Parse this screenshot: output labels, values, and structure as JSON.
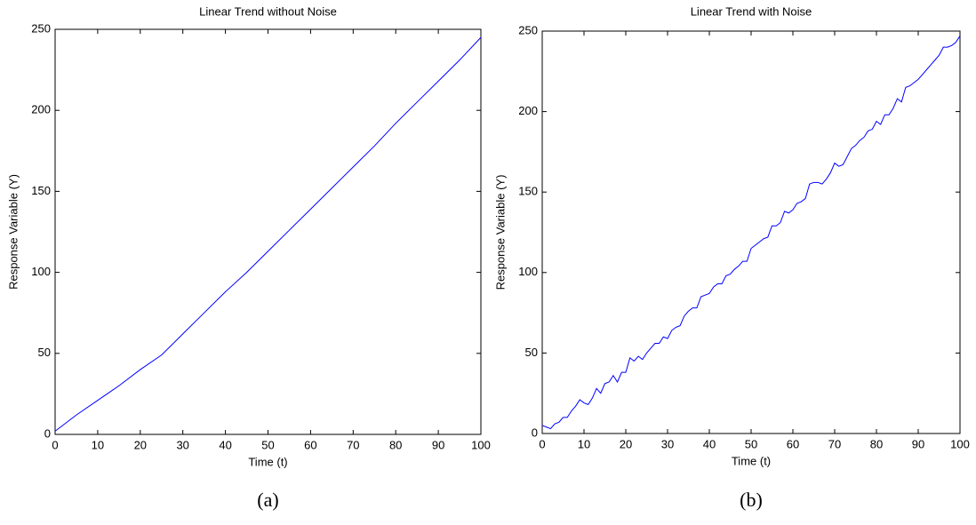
{
  "chart_data": [
    {
      "type": "line",
      "title": "Linear Trend without Noise",
      "xlabel": "Time (t)",
      "ylabel": "Response Variable (Y)",
      "caption": "(a)",
      "x": [
        0,
        5,
        10,
        15,
        20,
        25,
        30,
        35,
        40,
        45,
        50,
        55,
        60,
        65,
        70,
        75,
        80,
        85,
        90,
        95,
        100
      ],
      "series": [
        {
          "name": "Y",
          "color": "#0000ff",
          "values": [
            2,
            12,
            21,
            30,
            40,
            49,
            62,
            75,
            88,
            100,
            113,
            126,
            139,
            152,
            165,
            178,
            192,
            205,
            218,
            231,
            245
          ]
        }
      ],
      "xlim": [
        0,
        100
      ],
      "ylim": [
        0,
        250
      ],
      "xticks": [
        0,
        10,
        20,
        30,
        40,
        50,
        60,
        70,
        80,
        90,
        100
      ],
      "yticks": [
        0,
        50,
        100,
        150,
        200,
        250
      ]
    },
    {
      "type": "line",
      "title": "Linear Trend with Noise",
      "xlabel": "Time (t)",
      "ylabel": "Response Variable (Y)",
      "caption": "(b)",
      "x": [
        0,
        1,
        2,
        3,
        4,
        5,
        6,
        7,
        8,
        9,
        10,
        11,
        12,
        13,
        14,
        15,
        16,
        17,
        18,
        19,
        20,
        21,
        22,
        23,
        24,
        25,
        26,
        27,
        28,
        29,
        30,
        31,
        32,
        33,
        34,
        35,
        36,
        37,
        38,
        39,
        40,
        41,
        42,
        43,
        44,
        45,
        46,
        47,
        48,
        49,
        50,
        51,
        52,
        53,
        54,
        55,
        56,
        57,
        58,
        59,
        60,
        61,
        62,
        63,
        64,
        65,
        66,
        67,
        68,
        69,
        70,
        71,
        72,
        73,
        74,
        75,
        76,
        77,
        78,
        79,
        80,
        81,
        82,
        83,
        84,
        85,
        86,
        87,
        88,
        89,
        90,
        91,
        92,
        93,
        94,
        95,
        96,
        97,
        98,
        99,
        100
      ],
      "series": [
        {
          "name": "Y",
          "color": "#0000ff",
          "values": [
            5,
            4,
            3,
            6,
            7,
            10,
            10,
            14,
            17,
            21,
            19,
            18,
            22,
            28,
            25,
            31,
            32,
            36,
            32,
            38,
            38,
            47,
            45,
            48,
            46,
            50,
            53,
            56,
            56,
            60,
            59,
            64,
            66,
            67,
            73,
            76,
            78,
            78,
            85,
            86,
            87,
            91,
            93,
            93,
            98,
            99,
            102,
            104,
            107,
            107,
            115,
            117,
            119,
            121,
            122,
            129,
            129,
            131,
            138,
            137,
            139,
            143,
            144,
            146,
            155,
            156,
            156,
            155,
            158,
            162,
            168,
            166,
            167,
            172,
            177,
            179,
            182,
            184,
            188,
            189,
            194,
            192,
            198,
            198,
            202,
            208,
            206,
            215,
            216,
            218,
            220,
            223,
            226,
            229,
            232,
            235,
            240,
            240,
            241,
            243,
            247
          ]
        }
      ],
      "xlim": [
        0,
        100
      ],
      "ylim": [
        0,
        250
      ],
      "xticks": [
        0,
        10,
        20,
        30,
        40,
        50,
        60,
        70,
        80,
        90,
        100
      ],
      "yticks": [
        0,
        50,
        100,
        150,
        200,
        250
      ]
    }
  ]
}
